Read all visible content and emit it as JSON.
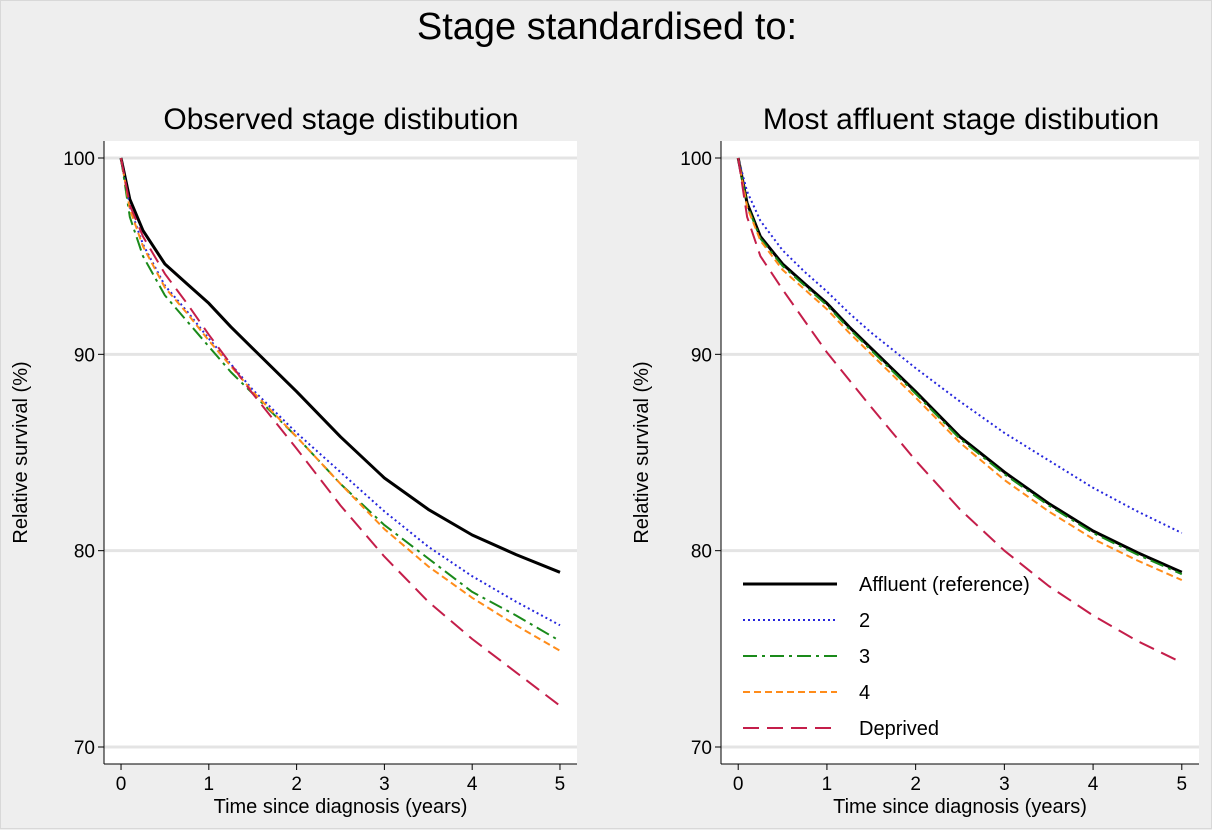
{
  "main_title": "Stage standardised to:",
  "colors": {
    "background": "#eeeeee",
    "plot_background": "#ffffff",
    "gridline": "#e4e4e4",
    "Affluent (reference)": "#000000",
    "2": "#2626dd",
    "3": "#1a8a1a",
    "4": "#ff8c1a",
    "Deprived": "#c41e4a"
  },
  "legend_entries": [
    "Affluent (reference)",
    "2",
    "3",
    "4",
    "Deprived"
  ],
  "chart_data": [
    {
      "type": "line",
      "title": "Observed stage distibution",
      "xlabel": "Time since diagnosis (years)",
      "ylabel": "Relative survival (%)",
      "xlim": [
        0,
        5
      ],
      "ylim": [
        70,
        100
      ],
      "xticks": [
        0,
        1,
        2,
        3,
        4,
        5
      ],
      "yticks": [
        70,
        80,
        90,
        100
      ],
      "grid": true,
      "legend": "none",
      "x": [
        0,
        0.1,
        0.25,
        0.5,
        0.75,
        1,
        1.25,
        1.5,
        2,
        2.5,
        3,
        3.5,
        4,
        4.5,
        5
      ],
      "series": [
        {
          "name": "Affluent (reference)",
          "values": [
            100,
            97.9,
            96.3,
            94.6,
            93.6,
            92.6,
            91.4,
            90.3,
            88.1,
            85.8,
            83.7,
            82.1,
            80.8,
            79.8,
            78.9
          ]
        },
        {
          "name": "2",
          "values": [
            100,
            97.5,
            95.6,
            93.5,
            92.2,
            90.8,
            89.5,
            88.2,
            86.0,
            84.0,
            82.0,
            80.2,
            78.7,
            77.4,
            76.2
          ]
        },
        {
          "name": "3",
          "values": [
            100,
            97.0,
            95.0,
            93.0,
            91.7,
            90.4,
            89.1,
            88.0,
            85.8,
            83.4,
            81.3,
            79.6,
            77.9,
            76.7,
            75.4
          ]
        },
        {
          "name": "4",
          "values": [
            100,
            97.4,
            95.5,
            93.4,
            92.1,
            90.7,
            89.4,
            88.1,
            85.8,
            83.4,
            81.1,
            79.2,
            77.6,
            76.2,
            74.9
          ]
        },
        {
          "name": "Deprived",
          "values": [
            100,
            97.6,
            96.0,
            94.1,
            92.6,
            91.0,
            89.5,
            88.0,
            85.2,
            82.3,
            79.7,
            77.4,
            75.5,
            73.8,
            72.1
          ]
        }
      ]
    },
    {
      "type": "line",
      "title": "Most affluent stage distibution",
      "xlabel": "Time since diagnosis (years)",
      "ylabel": "Relative survival (%)",
      "xlim": [
        0,
        5
      ],
      "ylim": [
        70,
        100
      ],
      "xticks": [
        0,
        1,
        2,
        3,
        4,
        5
      ],
      "yticks": [
        70,
        80,
        90,
        100
      ],
      "grid": true,
      "legend": "bottom-left",
      "x": [
        0,
        0.1,
        0.25,
        0.5,
        0.75,
        1,
        1.25,
        1.5,
        2,
        2.5,
        3,
        3.5,
        4,
        4.5,
        5
      ],
      "series": [
        {
          "name": "Affluent (reference)",
          "values": [
            100,
            97.7,
            96.0,
            94.6,
            93.6,
            92.6,
            91.4,
            90.3,
            88.1,
            85.8,
            84.0,
            82.4,
            81.0,
            79.9,
            78.9
          ]
        },
        {
          "name": "2",
          "values": [
            100,
            98.3,
            96.8,
            95.3,
            94.2,
            93.2,
            92.1,
            91.1,
            89.3,
            87.6,
            86.0,
            84.6,
            83.2,
            82.0,
            80.9
          ]
        },
        {
          "name": "3",
          "values": [
            100,
            97.6,
            95.9,
            94.5,
            93.5,
            92.5,
            91.3,
            90.2,
            88.0,
            85.7,
            83.9,
            82.3,
            80.9,
            79.8,
            78.8
          ]
        },
        {
          "name": "4",
          "values": [
            100,
            97.5,
            95.8,
            94.3,
            93.3,
            92.3,
            91.1,
            90.0,
            87.8,
            85.5,
            83.6,
            82.0,
            80.6,
            79.5,
            78.5
          ]
        },
        {
          "name": "Deprived",
          "values": [
            100,
            97.0,
            95.0,
            93.3,
            91.7,
            90.1,
            88.7,
            87.3,
            84.6,
            82.1,
            80.0,
            78.2,
            76.7,
            75.4,
            74.3
          ]
        }
      ]
    }
  ]
}
